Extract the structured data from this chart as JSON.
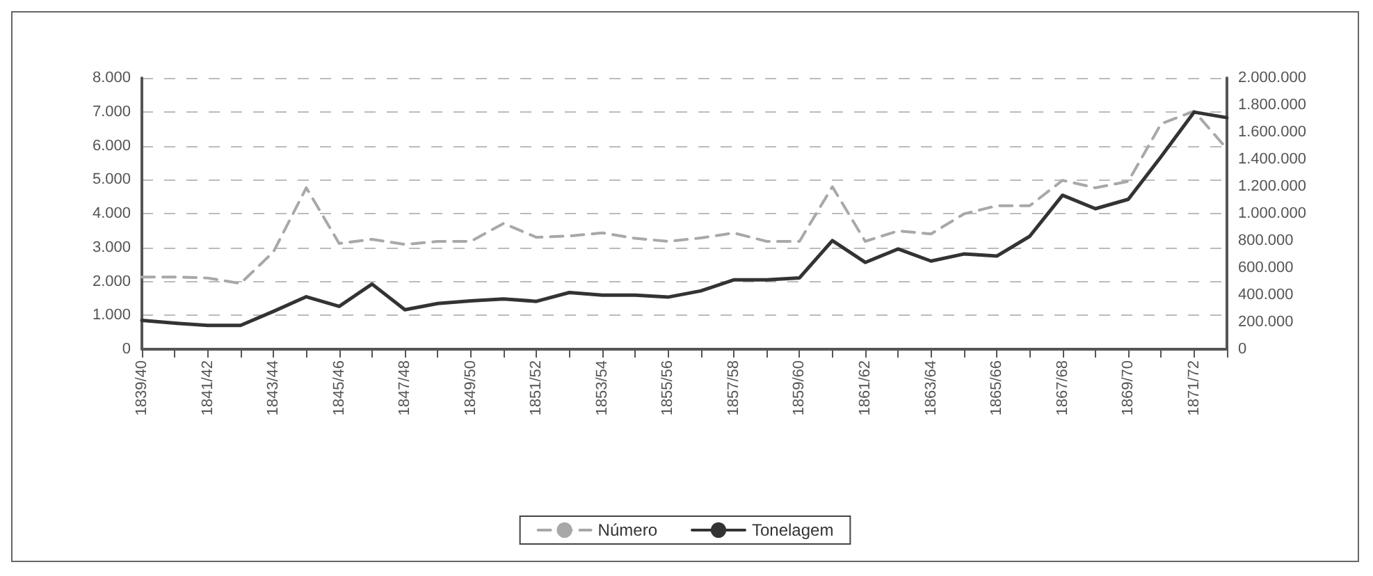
{
  "chart_data": {
    "type": "line",
    "categories": [
      "1839/40",
      null,
      "1841/42",
      null,
      "1843/44",
      null,
      "1845/46",
      null,
      "1847/48",
      null,
      "1849/50",
      null,
      "1851/52",
      null,
      "1853/54",
      null,
      "1855/56",
      null,
      "1857/58",
      null,
      "1859/60",
      null,
      "1861/62",
      null,
      "1863/64",
      null,
      "1865/66",
      null,
      "1867/68",
      null,
      "1869/70",
      null,
      "1871/72",
      null
    ],
    "series": [
      {
        "name": "Número",
        "color": "#a8a8a8",
        "line_style": "dashed",
        "values": [
          2130,
          2130,
          2100,
          1940,
          2870,
          4760,
          3120,
          3240,
          3090,
          3180,
          3180,
          3710,
          3300,
          3340,
          3430,
          3270,
          3180,
          3280,
          3430,
          3180,
          3180,
          4790,
          3180,
          3490,
          3400,
          3990,
          4230,
          4230,
          4980,
          4760,
          4950,
          6650,
          7020,
          5910
        ]
      },
      {
        "name": "Tonelagem",
        "color": "#333333",
        "line_style": "solid",
        "axis": "y2",
        "values": [
          213000,
          192000,
          176000,
          176000,
          279000,
          387000,
          316000,
          480000,
          291000,
          337000,
          356000,
          371000,
          353000,
          418000,
          399000,
          399000,
          384000,
          430000,
          511000,
          511000,
          526000,
          801000,
          640000,
          739000,
          650000,
          702000,
          687000,
          832000,
          1135000,
          1036000,
          1105000,
          1420000,
          1748000,
          1707000
        ]
      }
    ],
    "ylim": [
      0,
      8000
    ],
    "yticks": [
      0,
      {
        "value": 1000,
        "label": "1.000"
      },
      {
        "value": 2000,
        "label": "2.000"
      },
      {
        "value": 3000,
        "label": "3.000"
      },
      {
        "value": 4000,
        "label": "4.000"
      },
      {
        "value": 5000,
        "label": "5.000"
      },
      {
        "value": 6000,
        "label": "6.000"
      },
      {
        "value": 7000,
        "label": "7.000"
      },
      {
        "value": 8000,
        "label": "8.000"
      }
    ],
    "y2lim": [
      0,
      2000000
    ],
    "y2ticks": [
      0,
      {
        "value": 200000,
        "label": "200.000"
      },
      {
        "value": 400000,
        "label": "400.000"
      },
      {
        "value": 600000,
        "label": "600.000"
      },
      {
        "value": 800000,
        "label": "800.000"
      },
      {
        "value": 1000000,
        "label": "1.000.000"
      },
      {
        "value": 1200000,
        "label": "1.200.000"
      },
      {
        "value": 1400000,
        "label": "1.400.000"
      },
      {
        "value": 1600000,
        "label": "1.600.000"
      },
      {
        "value": 1800000,
        "label": "1.800.000"
      },
      {
        "value": 2000000,
        "label": "2.000.000"
      }
    ],
    "grid": "y",
    "legend": "bottom",
    "marker": "none"
  }
}
